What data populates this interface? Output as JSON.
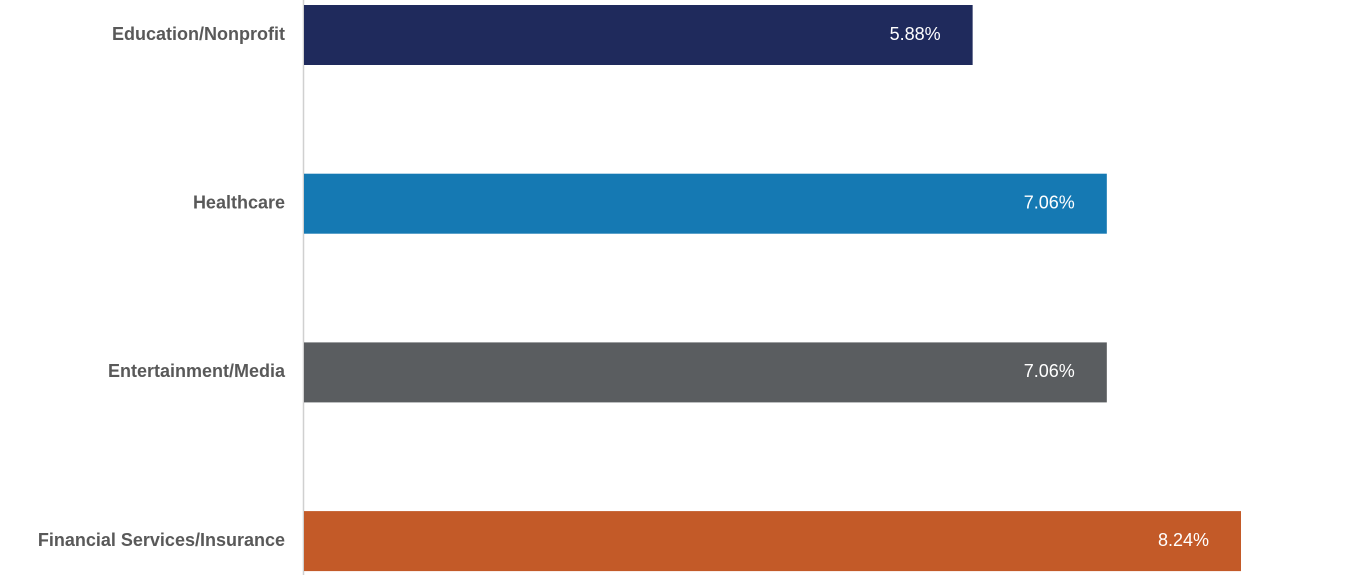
{
  "chart_data": {
    "type": "hbar",
    "categories": [
      "Education/Nonprofit",
      "Healthcare",
      "Entertainment/Media",
      "Financial Services/Insurance"
    ],
    "values": [
      5.88,
      7.06,
      7.06,
      8.24
    ],
    "value_labels": [
      "5.88%",
      "7.06%",
      "7.06%",
      "8.24%"
    ],
    "colors": [
      "#1f2a5c",
      "#1579b3",
      "#5a5d60",
      "#c35a28"
    ]
  }
}
